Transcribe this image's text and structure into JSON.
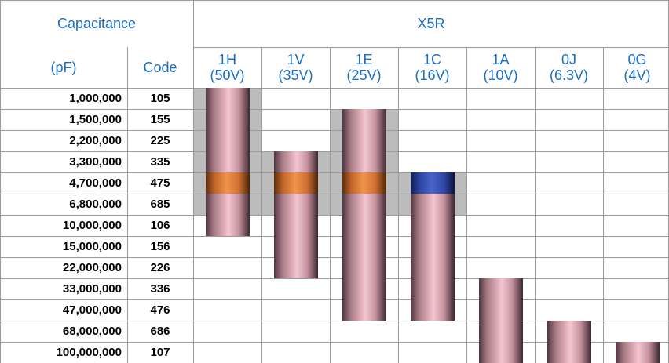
{
  "header": {
    "capacitance": "Capacitance",
    "group": "X5R",
    "pf": "(pF)",
    "code": "Code"
  },
  "voltages": [
    {
      "code": "1H",
      "voltage": "(50V)"
    },
    {
      "code": "1V",
      "voltage": "(35V)"
    },
    {
      "code": "1E",
      "voltage": "(25V)"
    },
    {
      "code": "1C",
      "voltage": "(16V)"
    },
    {
      "code": "1A",
      "voltage": "(10V)"
    },
    {
      "code": "0J",
      "voltage": "(6.3V)"
    },
    {
      "code": "0G",
      "voltage": "(4V)"
    }
  ],
  "rows": [
    [
      "1,000,000",
      "105"
    ],
    [
      "1,500,000",
      "155"
    ],
    [
      "2,200,000",
      "225"
    ],
    [
      "3,300,000",
      "335"
    ],
    [
      "4,700,000",
      "475"
    ],
    [
      "6,800,000",
      "685"
    ],
    [
      "10,000,000",
      "106"
    ],
    [
      "15,000,000",
      "156"
    ],
    [
      "22,000,000",
      "226"
    ],
    [
      "33,000,000",
      "336"
    ],
    [
      "47,000,000",
      "476"
    ],
    [
      "68,000,000",
      "686"
    ],
    [
      "100,000,000",
      "107"
    ]
  ]
}
